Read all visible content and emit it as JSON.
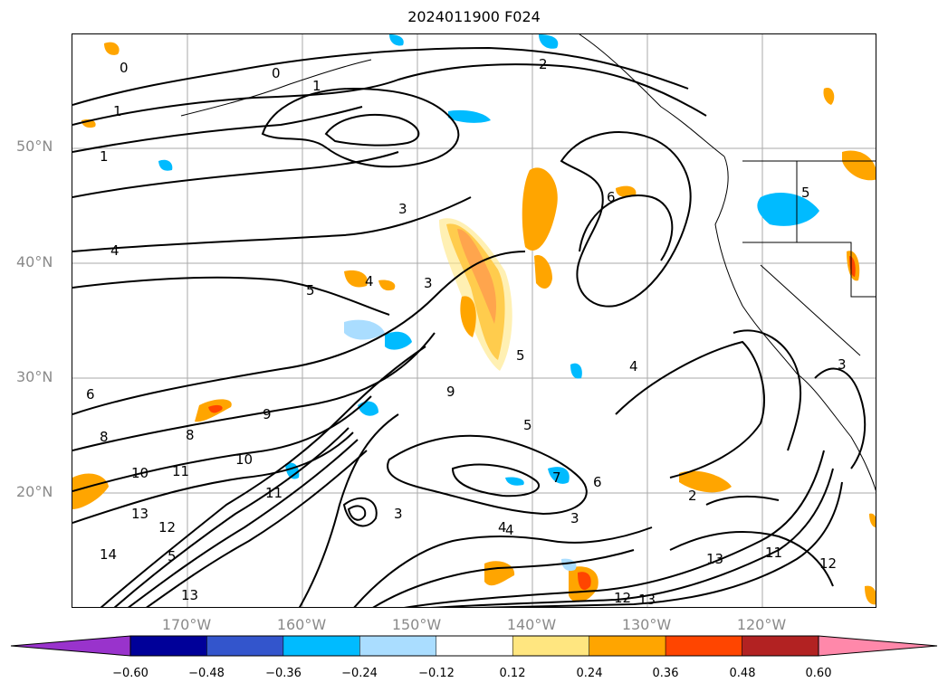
{
  "title": "2024011900 F024",
  "axes": {
    "lat_labels": [
      "50°N",
      "40°N",
      "30°N",
      "20°N"
    ],
    "lon_labels": [
      "170°W",
      "160°W",
      "150°W",
      "140°W",
      "130°W",
      "120°W"
    ]
  },
  "contour_labels": [
    "0",
    "0",
    "1",
    "1",
    "1",
    "2",
    "3",
    "3",
    "4",
    "4",
    "5",
    "4",
    "3",
    "5",
    "6",
    "5",
    "4",
    "5",
    "6",
    "6",
    "7",
    "8",
    "8",
    "9",
    "9",
    "10",
    "10",
    "11",
    "11",
    "12",
    "13",
    "13",
    "14",
    "5",
    "4",
    "3",
    "3",
    "2",
    "11",
    "12",
    "13",
    "12",
    "13"
  ],
  "colorbar": {
    "ticks": [
      "−0.60",
      "−0.48",
      "−0.36",
      "−0.24",
      "−0.12",
      "0.12",
      "0.24",
      "0.36",
      "0.48",
      "0.60"
    ],
    "colors": [
      "#9933cc",
      "#000099",
      "#3355cc",
      "#00bbff",
      "#aaddff",
      "#ffffff",
      "#ffe680",
      "#ffa500",
      "#ff4500",
      "#b22222",
      "#ff88aa"
    ]
  }
}
